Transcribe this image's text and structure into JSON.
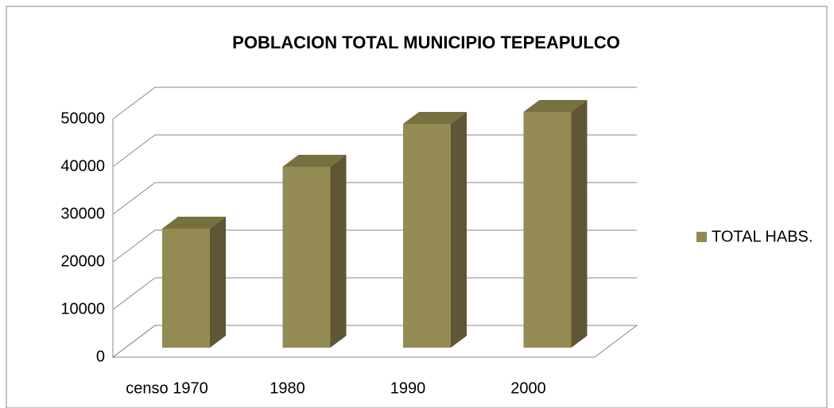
{
  "chart_data": {
    "type": "bar",
    "title": "POBLACION TOTAL MUNICIPIO TEPEAPULCO",
    "categories": [
      "censo 1970",
      "1980",
      "1990",
      "2000"
    ],
    "series": [
      {
        "name": "TOTAL HABS.",
        "color": "#948a54",
        "values": [
          25000,
          38000,
          47000,
          49500
        ]
      }
    ],
    "ylim": [
      0,
      50000
    ],
    "yticks": [
      0,
      10000,
      20000,
      30000,
      40000,
      50000
    ],
    "grid": true,
    "legend": "right"
  }
}
